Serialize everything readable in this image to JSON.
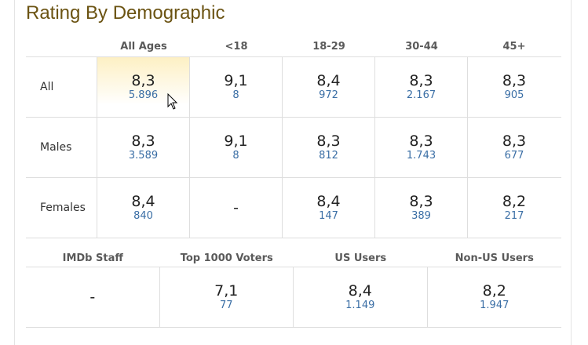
{
  "title": "Rating By Demographic",
  "demographics": {
    "columns": [
      "All Ages",
      "<18",
      "18-29",
      "30-44",
      "45+"
    ],
    "rows": [
      {
        "label": "All",
        "cells": [
          {
            "rating": "8,3",
            "votes": "5.896"
          },
          {
            "rating": "9,1",
            "votes": "8"
          },
          {
            "rating": "8,4",
            "votes": "972"
          },
          {
            "rating": "8,3",
            "votes": "2.167"
          },
          {
            "rating": "8,3",
            "votes": "905"
          }
        ]
      },
      {
        "label": "Males",
        "cells": [
          {
            "rating": "8,3",
            "votes": "3.589"
          },
          {
            "rating": "9,1",
            "votes": "8"
          },
          {
            "rating": "8,3",
            "votes": "812"
          },
          {
            "rating": "8,3",
            "votes": "1.743"
          },
          {
            "rating": "8,3",
            "votes": "677"
          }
        ]
      },
      {
        "label": "Females",
        "cells": [
          {
            "rating": "8,4",
            "votes": "840"
          },
          {
            "rating": "-",
            "votes": ""
          },
          {
            "rating": "8,4",
            "votes": "147"
          },
          {
            "rating": "8,3",
            "votes": "389"
          },
          {
            "rating": "8,2",
            "votes": "217"
          }
        ]
      }
    ]
  },
  "groups": {
    "columns": [
      "IMDb Staff",
      "Top 1000 Voters",
      "US Users",
      "Non-US Users"
    ],
    "cells": [
      {
        "rating": "-",
        "votes": ""
      },
      {
        "rating": "7,1",
        "votes": "77"
      },
      {
        "rating": "8,4",
        "votes": "1.149"
      },
      {
        "rating": "8,2",
        "votes": "1.947"
      }
    ]
  },
  "colors": {
    "title": "#6b5312",
    "votes_link": "#3a6ea5",
    "highlight": "#fdf0c4"
  },
  "icons": {
    "cursor": "mouse-pointer-icon"
  }
}
